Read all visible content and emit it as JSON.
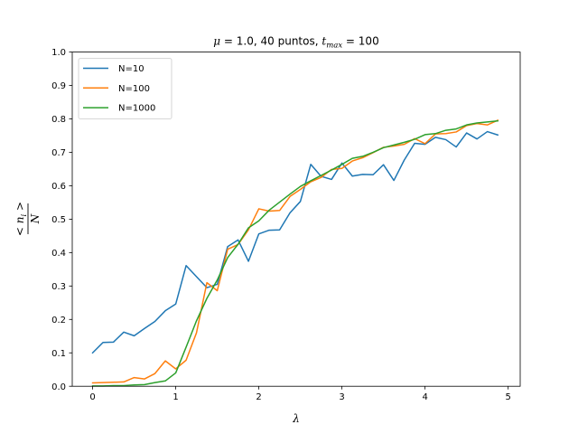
{
  "chart_data": {
    "type": "line",
    "title": "μ = 1.0, 40 puntos, t_max = 100",
    "title_parts": {
      "mu": "μ",
      "mu_rest": " = 1.0, 40 puntos, ",
      "t": "t",
      "t_sub": "max",
      "t_rest": " = 100"
    },
    "xlabel": "λ",
    "ylabel": "< n_i > / N",
    "ylabel_parts": {
      "numerator": "< n",
      "sub": "i",
      "numerator_end": " >",
      "denominator": "N"
    },
    "xlim": [
      -0.245,
      5.145
    ],
    "ylim": [
      0.0,
      1.0
    ],
    "xticks": [
      0,
      1,
      2,
      3,
      4,
      5
    ],
    "xtick_labels": [
      "0",
      "1",
      "2",
      "3",
      "4",
      "5"
    ],
    "yticks": [
      0.0,
      0.1,
      0.2,
      0.3,
      0.4,
      0.5,
      0.6,
      0.7,
      0.8,
      0.9,
      1.0
    ],
    "ytick_labels": [
      "0.0",
      "0.1",
      "0.2",
      "0.3",
      "0.4",
      "0.5",
      "0.6",
      "0.7",
      "0.8",
      "0.9",
      "1.0"
    ],
    "grid": false,
    "legend_position": "top-left",
    "x": [
      0.0,
      0.125,
      0.25,
      0.375,
      0.5,
      0.625,
      0.75,
      0.875,
      1.0,
      1.125,
      1.25,
      1.375,
      1.5,
      1.625,
      1.75,
      1.875,
      2.0,
      2.125,
      2.25,
      2.375,
      2.5,
      2.625,
      2.75,
      2.875,
      3.0,
      3.125,
      3.25,
      3.375,
      3.5,
      3.625,
      3.75,
      3.875,
      4.0,
      4.125,
      4.25,
      4.375,
      4.5,
      4.625,
      4.75,
      4.875
    ],
    "series": [
      {
        "name": "N=10",
        "color": "#1f77b4",
        "values": [
          0.1,
          0.131,
          0.132,
          0.162,
          0.151,
          0.173,
          0.194,
          0.226,
          0.246,
          0.361,
          0.328,
          0.295,
          0.305,
          0.418,
          0.438,
          0.374,
          0.456,
          0.467,
          0.468,
          0.519,
          0.553,
          0.664,
          0.628,
          0.619,
          0.668,
          0.629,
          0.634,
          0.633,
          0.663,
          0.616,
          0.677,
          0.727,
          0.724,
          0.745,
          0.738,
          0.716,
          0.758,
          0.74,
          0.762,
          0.752
        ]
      },
      {
        "name": "N=100",
        "color": "#ff7f0e",
        "values": [
          0.01,
          0.011,
          0.012,
          0.013,
          0.026,
          0.022,
          0.038,
          0.076,
          0.052,
          0.078,
          0.16,
          0.31,
          0.286,
          0.41,
          0.424,
          0.468,
          0.531,
          0.524,
          0.526,
          0.568,
          0.589,
          0.612,
          0.625,
          0.649,
          0.652,
          0.674,
          0.684,
          0.699,
          0.715,
          0.719,
          0.724,
          0.741,
          0.726,
          0.755,
          0.756,
          0.761,
          0.78,
          0.786,
          0.782,
          0.796
        ]
      },
      {
        "name": "N=1000",
        "color": "#2ca02c",
        "values": [
          0.001,
          0.001,
          0.002,
          0.002,
          0.004,
          0.005,
          0.011,
          0.016,
          0.04,
          0.117,
          0.196,
          0.263,
          0.318,
          0.385,
          0.425,
          0.474,
          0.495,
          0.527,
          0.551,
          0.575,
          0.598,
          0.615,
          0.631,
          0.647,
          0.664,
          0.682,
          0.688,
          0.7,
          0.714,
          0.722,
          0.73,
          0.739,
          0.753,
          0.756,
          0.766,
          0.77,
          0.782,
          0.788,
          0.791,
          0.794
        ]
      }
    ]
  }
}
